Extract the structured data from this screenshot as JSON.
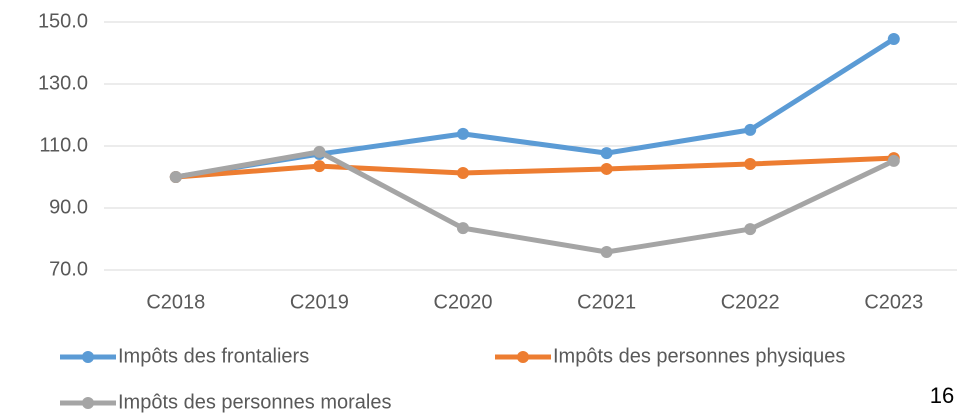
{
  "chart_data": {
    "type": "line",
    "categories": [
      "C2018",
      "C2019",
      "C2020",
      "C2021",
      "C2022",
      "C2023"
    ],
    "series": [
      {
        "name": "Impôts des frontaliers",
        "color": "#5b9bd5",
        "values": [
          100,
          107.4,
          113.9,
          107.7,
          115.2,
          144.5
        ]
      },
      {
        "name": "Impôts des personnes physiques",
        "color": "#ed7d31",
        "values": [
          100,
          103.5,
          101.3,
          102.6,
          104.2,
          106.1
        ]
      },
      {
        "name": "Impôts des personnes morales",
        "color": "#a5a5a5",
        "values": [
          100,
          108.1,
          83.5,
          75.8,
          83.2,
          105.2
        ]
      }
    ],
    "ylim": [
      70,
      150
    ],
    "yticks": [
      {
        "value": 70,
        "label": "70.0"
      },
      {
        "value": 90,
        "label": "90.0"
      },
      {
        "value": 110,
        "label": "110.0"
      },
      {
        "value": 130,
        "label": "130.0"
      },
      {
        "value": 150,
        "label": "150.0"
      }
    ],
    "grid": true
  },
  "page_number": "16"
}
